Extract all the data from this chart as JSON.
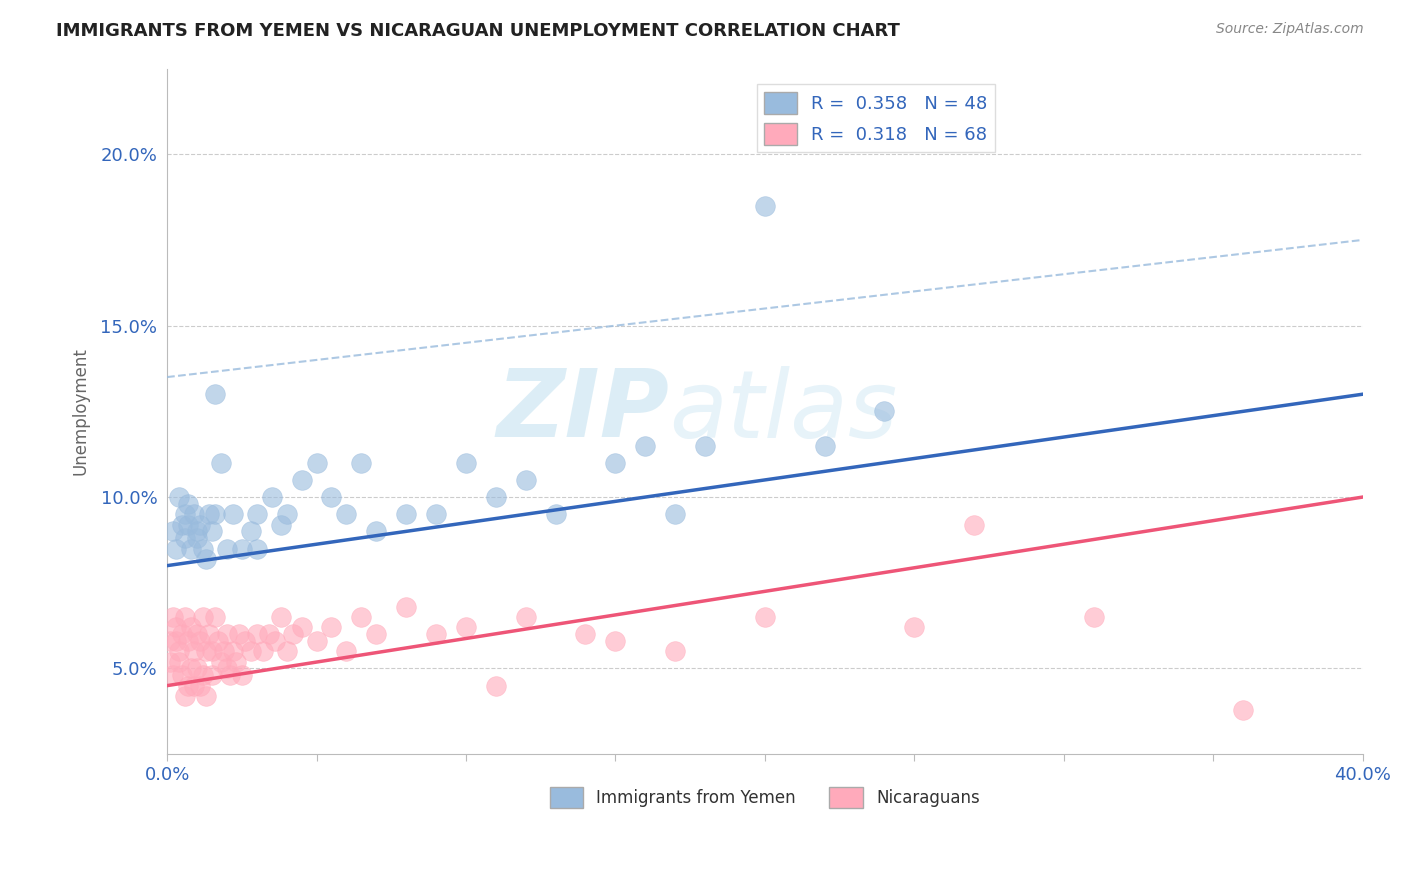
{
  "title": "IMMIGRANTS FROM YEMEN VS NICARAGUAN UNEMPLOYMENT CORRELATION CHART",
  "source_text": "Source: ZipAtlas.com",
  "ylabel": "Unemployment",
  "xlim": [
    0.0,
    0.4
  ],
  "ylim": [
    0.025,
    0.225
  ],
  "xticks": [
    0.0,
    0.05,
    0.1,
    0.15,
    0.2,
    0.25,
    0.3,
    0.35,
    0.4
  ],
  "yticks": [
    0.05,
    0.1,
    0.15,
    0.2
  ],
  "ytick_labels": [
    "5.0%",
    "10.0%",
    "15.0%",
    "20.0%"
  ],
  "legend_label1": "Immigrants from Yemen",
  "legend_label2": "Nicaraguans",
  "blue_color": "#99BBDD",
  "pink_color": "#FFAABB",
  "blue_line_color": "#3366BB",
  "pink_line_color": "#EE5577",
  "dashed_color": "#99BBDD",
  "watermark": "ZIPatlas",
  "watermark_color": "#BBDDEE",
  "blue_R": "0.358",
  "blue_N": "48",
  "pink_R": "0.318",
  "pink_N": "68",
  "blue_line_x0": 0.0,
  "blue_line_y0": 0.08,
  "blue_line_x1": 0.4,
  "blue_line_y1": 0.13,
  "pink_line_x0": 0.0,
  "pink_line_y0": 0.045,
  "pink_line_x1": 0.4,
  "pink_line_y1": 0.1,
  "dashed_line_x0": 0.0,
  "dashed_line_y0": 0.135,
  "dashed_line_x1": 0.4,
  "dashed_line_y1": 0.175,
  "blue_scatter_x": [
    0.002,
    0.003,
    0.004,
    0.005,
    0.006,
    0.006,
    0.007,
    0.007,
    0.008,
    0.009,
    0.01,
    0.01,
    0.011,
    0.012,
    0.013,
    0.014,
    0.015,
    0.016,
    0.016,
    0.018,
    0.02,
    0.022,
    0.025,
    0.028,
    0.03,
    0.03,
    0.035,
    0.038,
    0.04,
    0.045,
    0.05,
    0.055,
    0.06,
    0.065,
    0.07,
    0.08,
    0.09,
    0.1,
    0.11,
    0.12,
    0.13,
    0.15,
    0.16,
    0.17,
    0.18,
    0.2,
    0.22,
    0.24
  ],
  "blue_scatter_y": [
    0.09,
    0.085,
    0.1,
    0.092,
    0.095,
    0.088,
    0.092,
    0.098,
    0.085,
    0.095,
    0.09,
    0.088,
    0.092,
    0.085,
    0.082,
    0.095,
    0.09,
    0.13,
    0.095,
    0.11,
    0.085,
    0.095,
    0.085,
    0.09,
    0.085,
    0.095,
    0.1,
    0.092,
    0.095,
    0.105,
    0.11,
    0.1,
    0.095,
    0.11,
    0.09,
    0.095,
    0.095,
    0.11,
    0.1,
    0.105,
    0.095,
    0.11,
    0.115,
    0.095,
    0.115,
    0.185,
    0.115,
    0.125
  ],
  "pink_scatter_x": [
    0.001,
    0.001,
    0.002,
    0.002,
    0.003,
    0.003,
    0.004,
    0.004,
    0.005,
    0.005,
    0.006,
    0.006,
    0.007,
    0.007,
    0.008,
    0.008,
    0.009,
    0.009,
    0.01,
    0.01,
    0.011,
    0.011,
    0.012,
    0.012,
    0.013,
    0.013,
    0.014,
    0.015,
    0.015,
    0.016,
    0.017,
    0.018,
    0.019,
    0.02,
    0.02,
    0.021,
    0.022,
    0.023,
    0.024,
    0.025,
    0.026,
    0.028,
    0.03,
    0.032,
    0.034,
    0.036,
    0.038,
    0.04,
    0.042,
    0.045,
    0.05,
    0.055,
    0.06,
    0.065,
    0.07,
    0.08,
    0.09,
    0.1,
    0.11,
    0.12,
    0.14,
    0.15,
    0.17,
    0.2,
    0.25,
    0.27,
    0.31,
    0.36
  ],
  "pink_scatter_y": [
    0.058,
    0.052,
    0.065,
    0.048,
    0.062,
    0.058,
    0.055,
    0.052,
    0.06,
    0.048,
    0.065,
    0.042,
    0.058,
    0.045,
    0.062,
    0.05,
    0.055,
    0.045,
    0.06,
    0.05,
    0.058,
    0.045,
    0.065,
    0.048,
    0.055,
    0.042,
    0.06,
    0.055,
    0.048,
    0.065,
    0.058,
    0.052,
    0.055,
    0.05,
    0.06,
    0.048,
    0.055,
    0.052,
    0.06,
    0.048,
    0.058,
    0.055,
    0.06,
    0.055,
    0.06,
    0.058,
    0.065,
    0.055,
    0.06,
    0.062,
    0.058,
    0.062,
    0.055,
    0.065,
    0.06,
    0.068,
    0.06,
    0.062,
    0.045,
    0.065,
    0.06,
    0.058,
    0.055,
    0.065,
    0.062,
    0.092,
    0.065,
    0.038
  ]
}
